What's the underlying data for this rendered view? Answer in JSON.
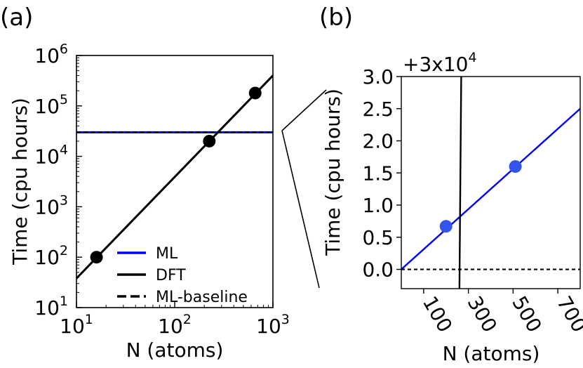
{
  "chart_data": [
    {
      "panel": "(a)",
      "type": "line",
      "xscale": "log",
      "yscale": "log",
      "xlabel": "N (atoms)",
      "ylabel": "Time (cpu hours)",
      "xlim": [
        10,
        1000
      ],
      "ylim": [
        10,
        1000000
      ],
      "xticks": [
        {
          "value": 10,
          "base": "10",
          "exp": "1"
        },
        {
          "value": 100,
          "base": "10",
          "exp": "2"
        },
        {
          "value": 1000,
          "base": "10",
          "exp": "3"
        }
      ],
      "yticks": [
        {
          "value": 10,
          "base": "10",
          "exp": "1"
        },
        {
          "value": 100,
          "base": "10",
          "exp": "2"
        },
        {
          "value": 1000,
          "base": "10",
          "exp": "3"
        },
        {
          "value": 10000,
          "base": "10",
          "exp": "4"
        },
        {
          "value": 100000,
          "base": "10",
          "exp": "5"
        },
        {
          "value": 1000000,
          "base": "10",
          "exp": "6"
        }
      ],
      "legend": {
        "position": "lower-right",
        "entries": [
          {
            "label": "ML",
            "color": "#0000ff",
            "style": "solid"
          },
          {
            "label": "DFT",
            "color": "#000000",
            "style": "solid"
          },
          {
            "label": "ML-baseline",
            "color": "#000000",
            "style": "dashed"
          }
        ]
      },
      "series": [
        {
          "name": "ML",
          "color": "#0000ff",
          "style": "solid",
          "x": [
            10,
            1000
          ],
          "y": [
            30000,
            30000
          ]
        },
        {
          "name": "ML-baseline",
          "color": "#000000",
          "style": "dashed",
          "x": [
            10,
            1000
          ],
          "y": [
            30000,
            30000
          ]
        },
        {
          "name": "DFT",
          "color": "#000000",
          "style": "solid",
          "x": [
            10,
            1000
          ],
          "y": [
            38,
            400000
          ]
        }
      ],
      "points": [
        {
          "series": "DFT",
          "x": 16,
          "y": 100,
          "color": "#000000"
        },
        {
          "series": "DFT",
          "x": 225,
          "y": 20000,
          "color": "#000000"
        },
        {
          "series": "DFT",
          "x": 660,
          "y": 180000,
          "color": "#000000"
        }
      ]
    },
    {
      "panel": "(b)",
      "type": "line",
      "xscale": "linear",
      "yscale": "linear",
      "xlabel": "N (atoms)",
      "ylabel": "Time (cpu hours)",
      "offset_label": {
        "base": "+3x10",
        "exp": "4"
      },
      "xlim": [
        0,
        800
      ],
      "ylim": [
        -0.3,
        3.0
      ],
      "xticks": [
        100,
        300,
        500,
        700
      ],
      "yticks": [
        {
          "value": 0.0,
          "label": "0.0"
        },
        {
          "value": 0.5,
          "label": "0.5"
        },
        {
          "value": 1.0,
          "label": "1.0"
        },
        {
          "value": 1.5,
          "label": "1.5"
        },
        {
          "value": 2.0,
          "label": "2.0"
        },
        {
          "value": 2.5,
          "label": "2.5"
        },
        {
          "value": 3.0,
          "label": "3.0"
        }
      ],
      "series": [
        {
          "name": "ML",
          "color": "#0000ff",
          "style": "solid",
          "x": [
            0,
            800
          ],
          "y": [
            0.0,
            2.5
          ]
        },
        {
          "name": "ML-baseline",
          "color": "#000000",
          "style": "dashed",
          "x": [
            0,
            800
          ],
          "y": [
            0.0,
            0.0
          ]
        },
        {
          "name": "DFT",
          "color": "#000000",
          "style": "solid",
          "x": [
            260,
            268
          ],
          "y": [
            -0.3,
            3.0
          ]
        }
      ],
      "points": [
        {
          "series": "ML",
          "x": 200,
          "y": 0.67,
          "color": "#3355ee"
        },
        {
          "series": "ML",
          "x": 510,
          "y": 1.6,
          "color": "#3355ee"
        }
      ]
    }
  ]
}
